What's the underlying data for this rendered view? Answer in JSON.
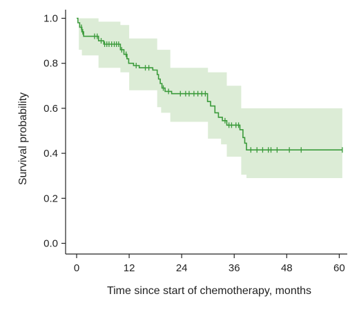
{
  "chart_data": {
    "type": "line",
    "title": "",
    "xlabel": "Time since start of chemotherapy, months",
    "ylabel": "Survival probability",
    "xlim": [
      0,
      61
    ],
    "ylim": [
      0,
      1.0
    ],
    "x_ticks": [
      0,
      12,
      24,
      36,
      48,
      60
    ],
    "y_ticks": [
      0.0,
      0.2,
      0.4,
      0.6,
      0.8,
      1.0
    ],
    "x_tick_labels": [
      "0",
      "12",
      "24",
      "36",
      "48",
      "60"
    ],
    "y_tick_labels": [
      "0.0",
      "0.2",
      "0.4",
      "0.6",
      "0.8",
      "1.0"
    ],
    "grid": false,
    "legend": "none",
    "colors": {
      "line": "#3a9a3a",
      "band": "#dcecd6"
    },
    "series": [
      {
        "step": [
          [
            0,
            1.0
          ],
          [
            0.3,
            0.98
          ],
          [
            0.7,
            0.96
          ],
          [
            1.2,
            0.94
          ],
          [
            1.6,
            0.92
          ],
          [
            5.0,
            0.9
          ],
          [
            6.2,
            0.885
          ],
          [
            10.0,
            0.86
          ],
          [
            10.8,
            0.84
          ],
          [
            11.5,
            0.82
          ],
          [
            11.9,
            0.8
          ],
          [
            13.0,
            0.79
          ],
          [
            14.3,
            0.78
          ],
          [
            17.4,
            0.77
          ],
          [
            18.4,
            0.75
          ],
          [
            18.7,
            0.73
          ],
          [
            19.1,
            0.71
          ],
          [
            19.5,
            0.69
          ],
          [
            20.2,
            0.675
          ],
          [
            21.7,
            0.665
          ],
          [
            29.9,
            0.63
          ],
          [
            30.6,
            0.61
          ],
          [
            31.6,
            0.58
          ],
          [
            32.4,
            0.56
          ],
          [
            33.3,
            0.545
          ],
          [
            34.3,
            0.525
          ],
          [
            37.3,
            0.505
          ],
          [
            38.0,
            0.47
          ],
          [
            38.4,
            0.445
          ],
          [
            38.8,
            0.415
          ],
          [
            60.7,
            0.415
          ]
        ],
        "ci_upper": [
          [
            0,
            1.0
          ],
          [
            1.2,
            1.0
          ],
          [
            5.0,
            0.985
          ],
          [
            10.0,
            0.97
          ],
          [
            12.0,
            0.91
          ],
          [
            18.4,
            0.86
          ],
          [
            21.4,
            0.78
          ],
          [
            30.0,
            0.76
          ],
          [
            34.3,
            0.7
          ],
          [
            37.6,
            0.6
          ],
          [
            60.7,
            0.6
          ]
        ],
        "ci_lower": [
          [
            0,
            1.0
          ],
          [
            0.5,
            0.86
          ],
          [
            1.2,
            0.835
          ],
          [
            5.0,
            0.78
          ],
          [
            10.0,
            0.76
          ],
          [
            12.0,
            0.68
          ],
          [
            18.4,
            0.605
          ],
          [
            19.3,
            0.58
          ],
          [
            21.4,
            0.54
          ],
          [
            30.0,
            0.465
          ],
          [
            33.0,
            0.44
          ],
          [
            34.3,
            0.385
          ],
          [
            37.6,
            0.305
          ],
          [
            38.8,
            0.29
          ],
          [
            60.7,
            0.29
          ]
        ],
        "censored": [
          1.1,
          1.4,
          4.1,
          4.7,
          5.6,
          6.4,
          6.9,
          7.4,
          8.0,
          8.6,
          9.1,
          9.6,
          10.3,
          11.3,
          13.6,
          15.7,
          16.5,
          19.8,
          21.0,
          23.7,
          24.9,
          25.7,
          26.8,
          27.7,
          28.6,
          29.4,
          33.9,
          34.8,
          35.4,
          36.4,
          37.0,
          39.8,
          41.2,
          42.5,
          43.8,
          44.4,
          45.8,
          48.6,
          51.3,
          60.7
        ]
      }
    ]
  }
}
